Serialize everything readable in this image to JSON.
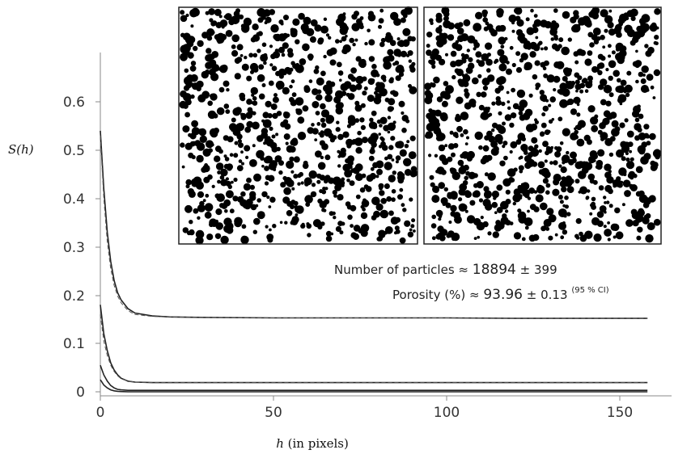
{
  "chart_data": {
    "type": "line",
    "title": "",
    "xlabel": "(in pixels)",
    "xlabel_var": "h",
    "ylabel": "S(h)",
    "xlim": [
      0,
      160
    ],
    "ylim": [
      0,
      0.65
    ],
    "xticks": [
      0,
      50,
      100,
      150
    ],
    "yticks": [
      0,
      0.1,
      0.2,
      0.3,
      0.4,
      0.5,
      0.6
    ],
    "ytick_labels": [
      "0",
      "0.1",
      "0.2",
      "0.3",
      "0.4",
      "0.5",
      "0.6"
    ],
    "grid": false,
    "series": [
      {
        "style": "solid",
        "x": [
          0,
          1,
          2,
          3,
          4,
          5,
          6,
          8,
          10,
          15,
          20,
          30,
          50,
          80,
          100,
          120,
          158
        ],
        "values": [
          0.54,
          0.42,
          0.33,
          0.27,
          0.23,
          0.205,
          0.19,
          0.172,
          0.163,
          0.157,
          0.155,
          0.154,
          0.153,
          0.153,
          0.153,
          0.152,
          0.152
        ]
      },
      {
        "style": "dashed",
        "x": [
          0,
          1,
          2,
          3,
          4,
          5,
          6,
          8,
          10,
          15,
          20,
          30,
          50,
          80,
          100,
          120,
          158
        ],
        "values": [
          0.53,
          0.4,
          0.31,
          0.255,
          0.22,
          0.198,
          0.184,
          0.168,
          0.16,
          0.156,
          0.155,
          0.154,
          0.153,
          0.153,
          0.153,
          0.152,
          0.152
        ]
      },
      {
        "style": "solid",
        "x": [
          0,
          1,
          2,
          3,
          4,
          5,
          6,
          8,
          10,
          15,
          20,
          30,
          50,
          80,
          100,
          120,
          158
        ],
        "values": [
          0.18,
          0.12,
          0.085,
          0.06,
          0.045,
          0.035,
          0.028,
          0.022,
          0.02,
          0.019,
          0.019,
          0.019,
          0.019,
          0.019,
          0.019,
          0.019,
          0.019
        ]
      },
      {
        "style": "dashed",
        "x": [
          0,
          1,
          2,
          3,
          4,
          5,
          6,
          8,
          10,
          15,
          20,
          30,
          50,
          80,
          100,
          120,
          158
        ],
        "values": [
          0.16,
          0.105,
          0.075,
          0.055,
          0.042,
          0.033,
          0.027,
          0.022,
          0.02,
          0.019,
          0.019,
          0.019,
          0.019,
          0.019,
          0.019,
          0.019,
          0.019
        ]
      },
      {
        "style": "solid",
        "x": [
          0,
          1,
          2,
          3,
          4,
          5,
          6,
          8,
          10,
          15,
          20,
          30,
          50,
          80,
          100,
          120,
          158
        ],
        "values": [
          0.055,
          0.035,
          0.022,
          0.013,
          0.008,
          0.005,
          0.004,
          0.003,
          0.003,
          0.003,
          0.003,
          0.003,
          0.003,
          0.003,
          0.003,
          0.003,
          0.003
        ]
      },
      {
        "style": "solid",
        "x": [
          0,
          1,
          2,
          3,
          4,
          5,
          6,
          8,
          10,
          15,
          20,
          30,
          50,
          80,
          100,
          120,
          158
        ],
        "values": [
          0.025,
          0.014,
          0.008,
          0.004,
          0.002,
          0.001,
          0.0005,
          0,
          0,
          0,
          0,
          0,
          0,
          0,
          0,
          0,
          0
        ]
      }
    ],
    "annotations": {
      "particles_label": "Number of particles",
      "particles_value": "18894",
      "particles_err": "399",
      "porosity_label": "Porosity (%)",
      "porosity_value": "93.96",
      "porosity_err": "0.13",
      "ci_label": "(95 % CI)",
      "approx_symbol": "≈",
      "pm_symbol": "±"
    },
    "insets": [
      {
        "type": "binary-microstructure-image",
        "seed": 7
      },
      {
        "type": "binary-microstructure-image",
        "seed": 23
      }
    ]
  }
}
